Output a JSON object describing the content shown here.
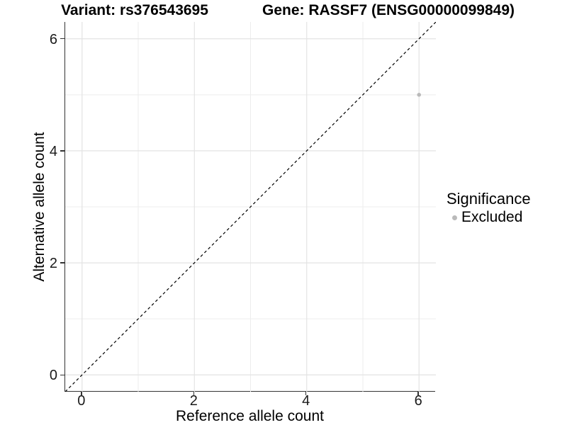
{
  "chart_data": {
    "type": "scatter",
    "title_left": "Variant: rs376543695",
    "title_right": "Gene: RASSF7 (ENSG00000099849)",
    "xlabel": "Reference allele count",
    "ylabel": "Alternative allele count",
    "xlim": [
      -0.3,
      6.3
    ],
    "ylim": [
      -0.3,
      6.3
    ],
    "x_major_ticks": [
      0,
      2,
      4,
      6
    ],
    "y_major_ticks": [
      0,
      2,
      4,
      6
    ],
    "x_minor_gridlines": [
      1,
      3,
      5
    ],
    "y_minor_gridlines": [
      1,
      3,
      5
    ],
    "grid": "major and minor gridlines on, white background",
    "reference_line": {
      "type": "identity y=x",
      "style": "dashed",
      "color": "#000000"
    },
    "series": [
      {
        "name": "Excluded",
        "color": "#bababa",
        "points": [
          {
            "x": 6,
            "y": 5
          }
        ]
      }
    ],
    "legend": {
      "title": "Significance",
      "position": "right",
      "entries": [
        {
          "label": "Excluded",
          "color": "#bababa",
          "marker": "circle"
        }
      ]
    }
  },
  "colors": {
    "background": "#ffffff",
    "grid_major": "#e3e3e3",
    "grid_minor": "#ededed",
    "axis_line": "#333333",
    "tick_text": "#1a1a1a",
    "title_text": "#000000",
    "point": "#bababa",
    "dashed_line": "#000000"
  }
}
